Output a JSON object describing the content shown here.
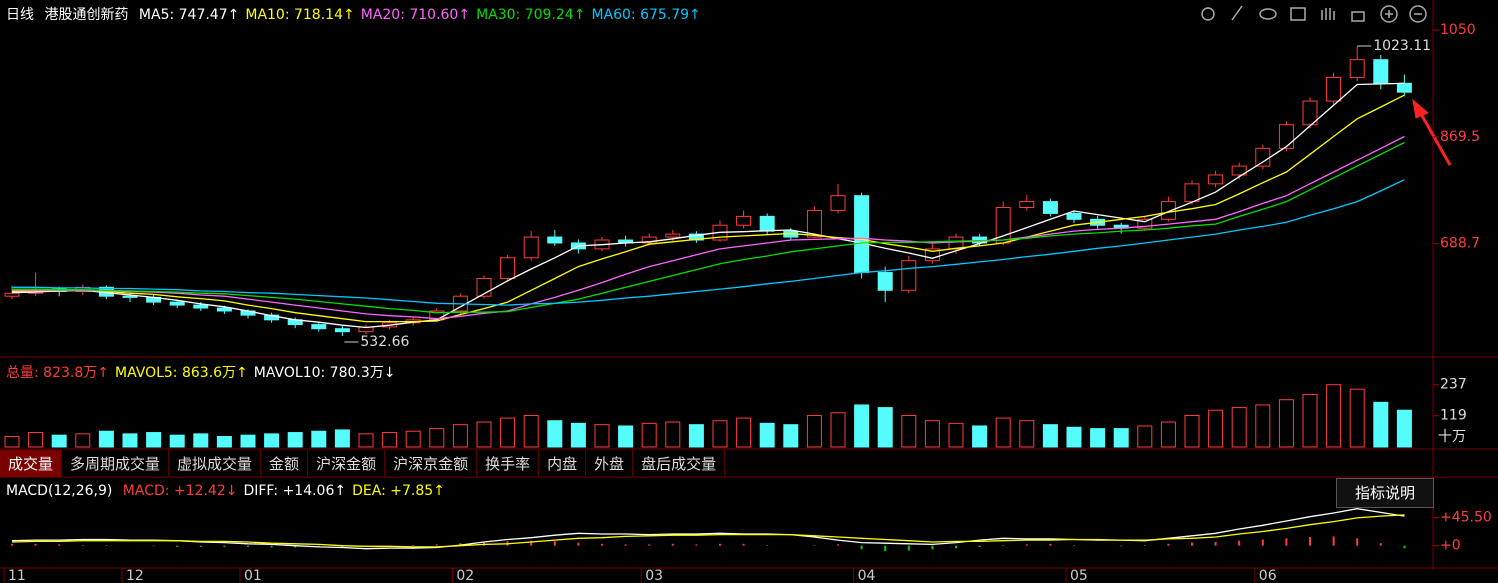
{
  "ui": {
    "period": "日线",
    "name": "港股通创新药",
    "tabs": [
      "成交量",
      "多周期成交量",
      "虚拟成交量",
      "金额",
      "沪深金额",
      "沪深京金额",
      "换手率",
      "内盘",
      "外盘",
      "盘后成交量"
    ],
    "help": "指标说明"
  },
  "chart_data": [
    {
      "type": "candlestick",
      "up_color": "#ff3c3c",
      "down_color": "#54fcfc",
      "categories": [
        "11",
        null,
        null,
        null,
        null,
        "12",
        null,
        null,
        null,
        null,
        "01",
        null,
        null,
        null,
        null,
        null,
        null,
        null,
        null,
        "02",
        null,
        null,
        null,
        null,
        null,
        null,
        null,
        "03",
        null,
        null,
        null,
        null,
        null,
        null,
        null,
        null,
        "04",
        null,
        null,
        null,
        null,
        null,
        null,
        null,
        null,
        "05",
        null,
        null,
        null,
        null,
        null,
        null,
        null,
        "06",
        null,
        null,
        null,
        null,
        null,
        null
      ],
      "open": [
        600,
        605,
        612,
        608,
        615,
        600,
        598,
        590,
        585,
        580,
        575,
        568,
        560,
        552,
        545,
        540,
        548,
        555,
        560,
        575,
        600,
        630,
        665,
        700,
        690,
        680,
        695,
        690,
        700,
        705,
        695,
        720,
        735,
        710,
        700,
        745,
        770,
        640,
        610,
        660,
        680,
        700,
        690,
        750,
        760,
        740,
        730,
        720,
        715,
        730,
        760,
        790,
        805,
        820,
        850,
        890,
        930,
        970,
        1000,
        960
      ],
      "high": [
        618,
        640,
        616,
        620,
        618,
        605,
        602,
        594,
        590,
        584,
        578,
        572,
        564,
        556,
        550,
        552,
        560,
        565,
        580,
        605,
        635,
        670,
        710,
        712,
        696,
        700,
        702,
        706,
        712,
        710,
        728,
        745,
        740,
        715,
        752,
        790,
        775,
        650,
        668,
        690,
        706,
        705,
        760,
        772,
        765,
        745,
        736,
        724,
        736,
        768,
        796,
        812,
        826,
        856,
        896,
        936,
        978,
        1023.11,
        1008,
        975
      ],
      "low": [
        595,
        600,
        600,
        602,
        595,
        590,
        585,
        580,
        575,
        570,
        562,
        555,
        546,
        540,
        532.66,
        536,
        544,
        550,
        556,
        570,
        596,
        625,
        660,
        685,
        672,
        676,
        684,
        686,
        694,
        690,
        692,
        715,
        705,
        695,
        698,
        740,
        630,
        590,
        605,
        655,
        672,
        684,
        686,
        745,
        735,
        724,
        714,
        706,
        710,
        726,
        755,
        784,
        798,
        815,
        845,
        884,
        924,
        964,
        950,
        938
      ],
      "close": [
        605,
        612,
        608,
        615,
        600,
        598,
        590,
        585,
        580,
        575,
        568,
        560,
        552,
        545,
        540,
        548,
        555,
        560,
        575,
        600,
        630,
        665,
        700,
        690,
        680,
        695,
        690,
        700,
        705,
        695,
        720,
        735,
        710,
        700,
        745,
        770,
        640,
        610,
        660,
        680,
        700,
        690,
        750,
        760,
        740,
        730,
        720,
        715,
        730,
        760,
        790,
        805,
        820,
        850,
        890,
        930,
        970,
        1000,
        960,
        945
      ],
      "series": [
        {
          "name": "MA5: 747.47↑",
          "color": "#ffffff",
          "values": [
            606,
            607,
            609,
            610,
            606,
            602,
            598,
            593,
            587,
            582,
            575,
            567,
            560,
            556,
            551,
            547,
            551,
            556,
            560,
            582,
            604,
            626,
            646,
            665,
            685,
            687,
            690,
            692,
            697,
            703,
            708,
            709,
            711,
            712,
            705,
            697,
            690,
            681,
            673,
            664,
            677,
            689,
            702,
            716,
            730,
            744,
            738,
            732,
            726,
            743,
            759,
            776,
            802,
            827,
            853,
            888,
            923,
            958,
            959,
            960
          ]
        },
        {
          "name": "MA10: 718.14↑",
          "color": "#ffff00",
          "values": [
            608,
            609,
            609,
            610,
            608,
            605,
            603,
            599,
            596,
            592,
            585,
            579,
            572,
            567,
            562,
            557,
            557,
            557,
            558,
            569,
            579,
            590,
            610,
            630,
            650,
            663,
            675,
            688,
            692,
            696,
            700,
            702,
            704,
            706,
            703,
            699,
            696,
            689,
            683,
            676,
            681,
            685,
            690,
            700,
            710,
            720,
            725,
            730,
            735,
            742,
            748,
            755,
            773,
            792,
            810,
            840,
            870,
            900,
            920,
            940
          ]
        },
        {
          "name": "MA20: 710.60↑",
          "color": "#ff66ff",
          "values": [
            610,
            610,
            610,
            610,
            609,
            608,
            607,
            605,
            602,
            600,
            595,
            590,
            585,
            580,
            575,
            570,
            567,
            565,
            562,
            566,
            571,
            575,
            587,
            598,
            610,
            623,
            637,
            650,
            660,
            670,
            680,
            685,
            690,
            695,
            696,
            697,
            698,
            695,
            693,
            690,
            692,
            693,
            695,
            700,
            705,
            710,
            713,
            715,
            718,
            722,
            726,
            730,
            743,
            757,
            770,
            790,
            810,
            830,
            850,
            870
          ]
        },
        {
          "name": "MA30: 709.24↑",
          "color": "#00e000",
          "values": [
            612,
            612,
            611,
            611,
            610,
            609,
            608,
            607,
            605,
            604,
            601,
            598,
            595,
            591,
            587,
            583,
            579,
            576,
            572,
            573,
            573,
            574,
            581,
            588,
            595,
            605,
            615,
            625,
            635,
            645,
            655,
            662,
            668,
            675,
            680,
            685,
            690,
            691,
            691,
            692,
            693,
            694,
            695,
            698,
            702,
            705,
            707,
            710,
            712,
            715,
            719,
            722,
            735,
            747,
            760,
            780,
            800,
            820,
            840,
            860
          ]
        },
        {
          "name": "MA60: 675.79↑",
          "color": "#00c8ff",
          "values": [
            615,
            615,
            614,
            614,
            613,
            613,
            612,
            611,
            609,
            608,
            606,
            605,
            603,
            601,
            599,
            597,
            594,
            591,
            588,
            587,
            586,
            585,
            587,
            588,
            590,
            593,
            597,
            600,
            604,
            608,
            612,
            616,
            621,
            625,
            630,
            635,
            640,
            643,
            647,
            650,
            654,
            658,
            662,
            667,
            671,
            676,
            681,
            685,
            690,
            695,
            700,
            705,
            712,
            718,
            725,
            737,
            748,
            760,
            778,
            797
          ]
        }
      ],
      "ylim": [
        509,
        1084
      ],
      "yticks": [
        1050,
        869.5,
        688.7
      ]
    },
    {
      "type": "bar",
      "unit": "十万",
      "legend": [
        {
          "text": "总量: 823.8万↑",
          "color": "#ff3c3c"
        },
        {
          "text": "MAVOL5: 863.6万↑",
          "color": "#ffff00"
        },
        {
          "text": "MAVOL10: 780.3万↓",
          "color": "#ffffff"
        }
      ],
      "values": [
        40,
        55,
        45,
        50,
        60,
        50,
        55,
        45,
        50,
        40,
        45,
        50,
        55,
        60,
        65,
        50,
        55,
        60,
        70,
        85,
        95,
        110,
        120,
        100,
        90,
        85,
        80,
        90,
        95,
        85,
        100,
        110,
        90,
        85,
        120,
        130,
        160,
        150,
        120,
        100,
        90,
        80,
        110,
        100,
        85,
        75,
        70,
        70,
        80,
        95,
        120,
        140,
        150,
        160,
        180,
        200,
        237,
        220,
        170,
        140
      ],
      "ylim": [
        0,
        274
      ],
      "yticks": [
        237,
        119
      ]
    },
    {
      "type": "macd",
      "title": "MACD(12,26,9)",
      "series": [
        {
          "name": "MACD: +12.42↓",
          "color": "#ff3c3c",
          "neg_color": "#00d000",
          "values": [
            3,
            3,
            2,
            1,
            1,
            0,
            -1,
            -2,
            -2,
            -2,
            -2,
            -3,
            -3,
            -3,
            -2,
            -1,
            0,
            1,
            2,
            4,
            5,
            7,
            8,
            7,
            5,
            3,
            2,
            2,
            3,
            2,
            3,
            3,
            1,
            0,
            1,
            2,
            -6,
            -9,
            -8,
            -6,
            -4,
            -2,
            1,
            2,
            3,
            1,
            0,
            -1,
            1,
            3,
            5,
            6,
            8,
            10,
            12,
            14,
            15,
            12,
            4,
            -4
          ]
        },
        {
          "name": "DIFF: +14.06↑",
          "color": "#ffffff",
          "values": [
            8,
            9,
            9,
            10,
            10,
            9,
            9,
            8,
            6,
            5,
            3,
            2,
            0,
            -2,
            -3,
            -5,
            -4,
            -4,
            -3,
            1,
            6,
            10,
            13,
            17,
            20,
            19,
            19,
            18,
            19,
            19,
            20,
            19,
            19,
            18,
            14,
            9,
            5,
            4,
            3,
            2,
            5,
            9,
            12,
            11,
            11,
            10,
            9,
            9,
            8,
            12,
            16,
            20,
            27,
            33,
            40,
            47,
            53,
            60,
            54,
            48
          ]
        },
        {
          "name": "DEA: +7.85↑",
          "color": "#ffff00",
          "values": [
            6,
            7,
            7,
            8,
            8,
            8,
            8,
            8,
            7,
            7,
            6,
            4,
            3,
            2,
            0,
            -1,
            -1,
            -2,
            -2,
            0,
            2,
            3,
            6,
            9,
            12,
            13,
            15,
            16,
            17,
            17,
            18,
            18,
            18,
            18,
            16,
            14,
            12,
            10,
            8,
            6,
            7,
            7,
            8,
            9,
            9,
            10,
            10,
            9,
            9,
            11,
            12,
            14,
            19,
            23,
            28,
            34,
            39,
            45,
            48,
            50
          ]
        }
      ],
      "ylim": [
        -33,
        66
      ],
      "yticks": [
        {
          "value": 45.5,
          "label": "+45.50"
        },
        {
          "value": 0,
          "label": "+0"
        }
      ]
    }
  ]
}
